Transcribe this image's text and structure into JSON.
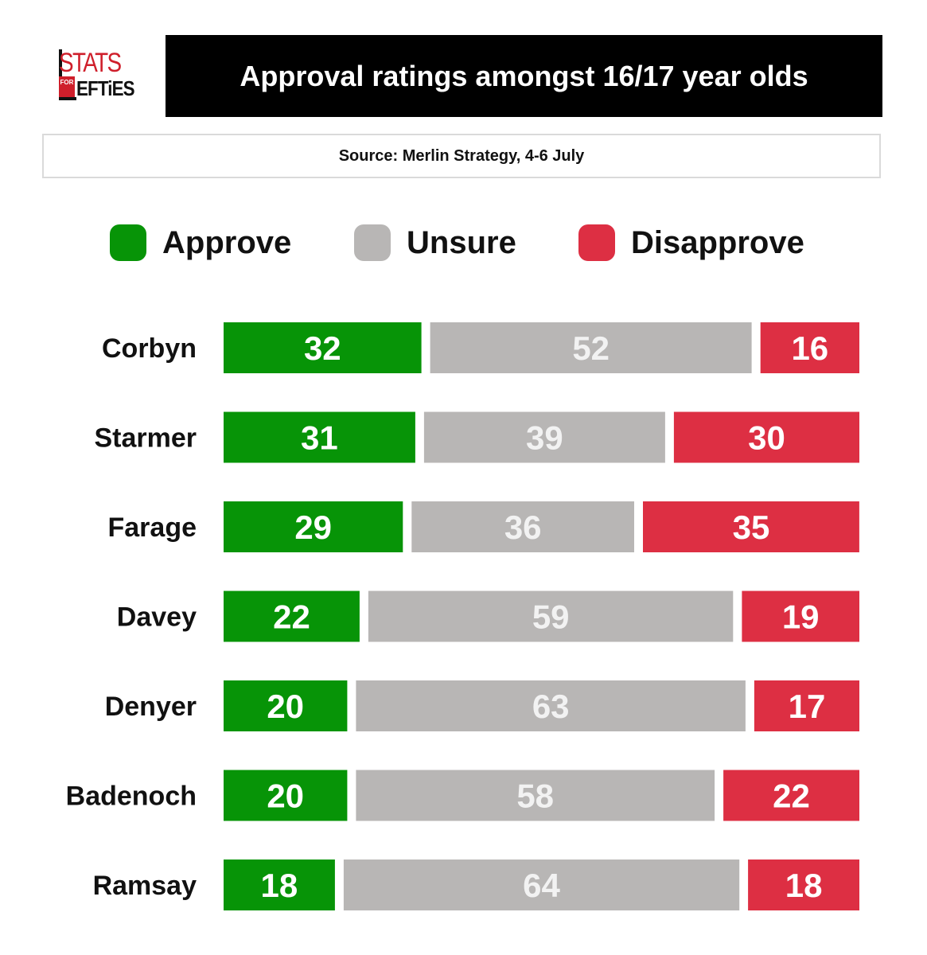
{
  "logo": {
    "stats": "STATS",
    "for": "FOR",
    "lefties": "EFTiES"
  },
  "header": {
    "title": "Approval ratings amongst 16/17 year olds"
  },
  "source": {
    "text": "Source: Merlin Strategy, 4-6 July"
  },
  "colors": {
    "approve": "#079407",
    "unsure": "#b8b6b5",
    "disapprove": "#dd2f43"
  },
  "chart_data": {
    "type": "bar",
    "orientation": "horizontal",
    "stacked": true,
    "title": "Approval ratings amongst 16/17 year olds",
    "subtitle": "Source: Merlin Strategy, 4-6 July",
    "xlim": [
      0,
      100
    ],
    "legend_position": "top",
    "categories": [
      "Corbyn",
      "Starmer",
      "Farage",
      "Davey",
      "Denyer",
      "Badenoch",
      "Ramsay"
    ],
    "series": [
      {
        "name": "Approve",
        "values": [
          32,
          31,
          29,
          22,
          20,
          20,
          18
        ]
      },
      {
        "name": "Unsure",
        "values": [
          52,
          39,
          36,
          59,
          63,
          58,
          64
        ]
      },
      {
        "name": "Disapprove",
        "values": [
          16,
          30,
          35,
          19,
          17,
          22,
          18
        ]
      }
    ]
  }
}
